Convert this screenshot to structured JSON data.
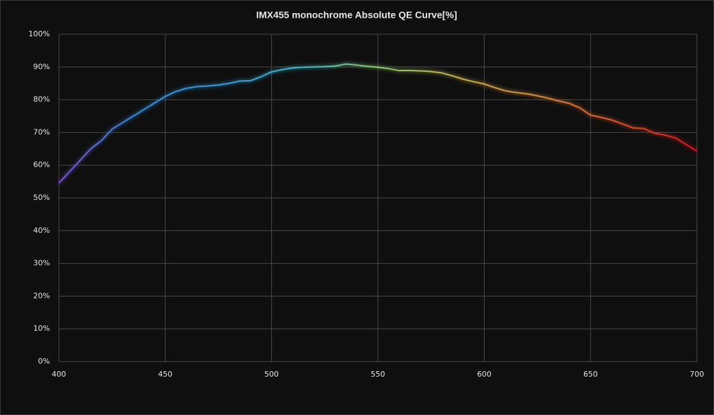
{
  "chart_data": {
    "type": "line",
    "title": "IMX455 monochrome Absolute QE Curve[%]",
    "x": [
      400,
      405,
      410,
      415,
      420,
      425,
      430,
      435,
      440,
      445,
      450,
      455,
      460,
      465,
      470,
      475,
      480,
      485,
      490,
      495,
      500,
      505,
      510,
      515,
      520,
      525,
      530,
      535,
      540,
      545,
      550,
      555,
      560,
      565,
      570,
      575,
      580,
      585,
      590,
      595,
      600,
      605,
      610,
      615,
      620,
      625,
      630,
      635,
      640,
      645,
      650,
      655,
      660,
      665,
      670,
      675,
      680,
      685,
      690,
      695,
      700
    ],
    "series": [
      {
        "values": [
          54.5,
          58,
          61.5,
          65,
          67.5,
          71,
          73,
          75,
          77,
          79,
          81,
          82.5,
          83.5,
          84,
          84.2,
          84.5,
          85,
          85.7,
          85.8,
          87,
          88.5,
          89.2,
          89.7,
          89.9,
          90,
          90.1,
          90.3,
          90.9,
          90.6,
          90.2,
          89.9,
          89.5,
          88.9,
          88.9,
          88.8,
          88.6,
          88.2,
          87.3,
          86.3,
          85.5,
          84.8,
          83.7,
          82.7,
          82.2,
          81.8,
          81.2,
          80.5,
          79.6,
          78.9,
          77.5,
          75.3,
          74.6,
          73.8,
          72.6,
          71.4,
          71.2,
          69.8,
          69.2,
          68.3,
          66.3,
          64.3
        ],
        "gradient": [
          "#7b4fd6",
          "#2f8fe0",
          "#2f9ae0",
          "#3cb8d0",
          "#8acb6a",
          "#c9b04a",
          "#d98a3a",
          "#e0552a",
          "#d81020"
        ]
      }
    ],
    "xlim": [
      400,
      700
    ],
    "xticks": [
      400,
      450,
      500,
      550,
      600,
      650,
      700
    ],
    "ylim": [
      0,
      100
    ],
    "yticks": [
      {
        "value": 0,
        "label": "0%"
      },
      {
        "value": 10,
        "label": "10%"
      },
      {
        "value": 20,
        "label": "20%"
      },
      {
        "value": 30,
        "label": "30%"
      },
      {
        "value": 40,
        "label": "40%"
      },
      {
        "value": 50,
        "label": "50%"
      },
      {
        "value": 60,
        "label": "60%"
      },
      {
        "value": 70,
        "label": "70%"
      },
      {
        "value": 80,
        "label": "80%"
      },
      {
        "value": 90,
        "label": "90%"
      },
      {
        "value": 100,
        "label": "100%"
      }
    ],
    "grid": true
  }
}
